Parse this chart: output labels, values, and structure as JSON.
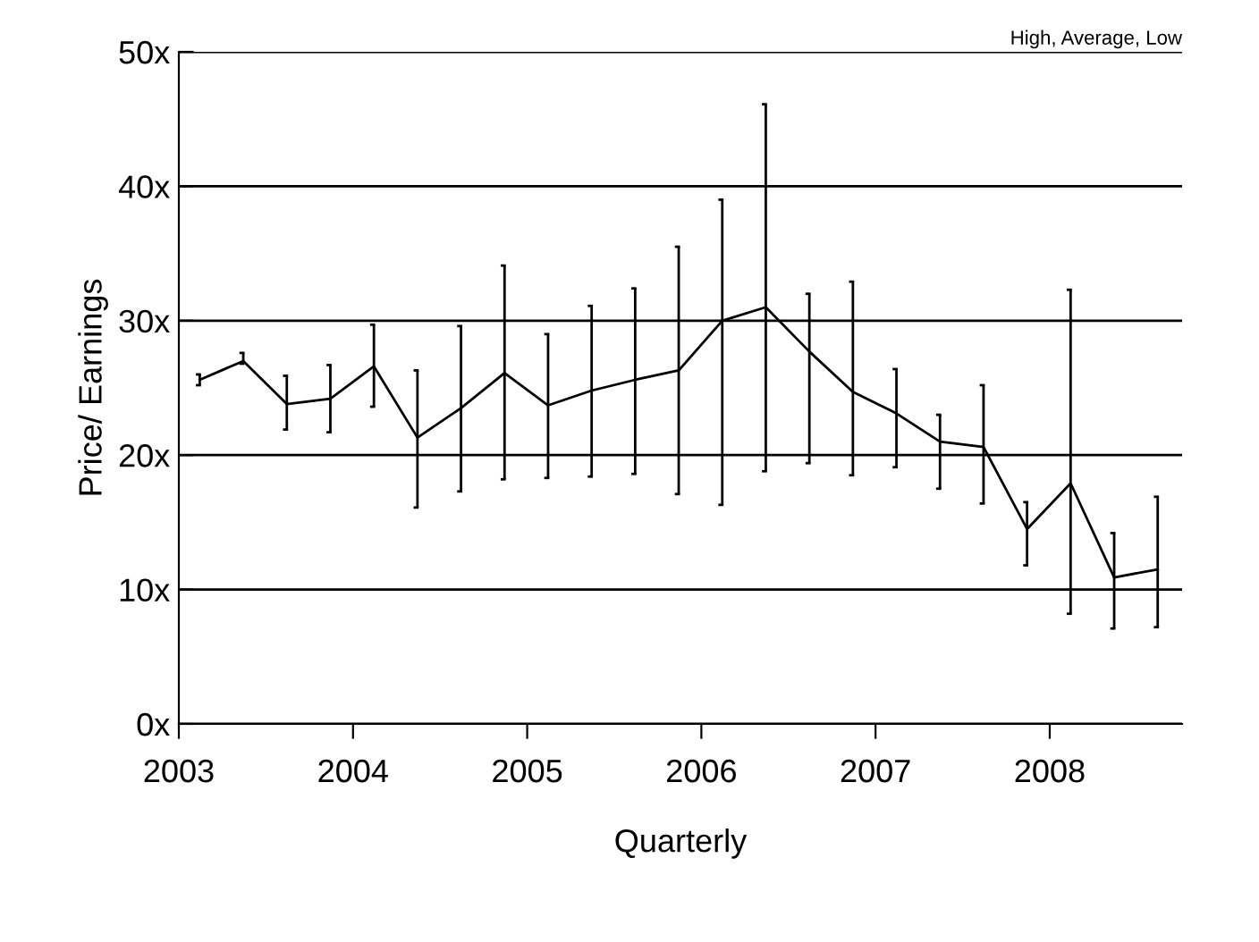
{
  "chart_data": {
    "type": "line",
    "title": "High, Average, Low",
    "xlabel": "Quarterly",
    "ylabel": "Price/ Earnings",
    "x": [
      2003.12,
      2003.37,
      2003.62,
      2003.87,
      2004.12,
      2004.37,
      2004.62,
      2004.87,
      2005.12,
      2005.37,
      2005.62,
      2005.87,
      2006.12,
      2006.37,
      2006.62,
      2006.87,
      2007.12,
      2007.37,
      2007.62,
      2007.87,
      2008.12,
      2008.37,
      2008.62
    ],
    "series": [
      {
        "color": "#000000",
        "values": [
          25.6,
          27.0,
          23.8,
          24.2,
          26.6,
          21.3,
          23.5,
          26.1,
          23.7,
          24.8,
          25.6,
          26.3,
          30.0,
          31.0,
          27.7,
          24.7,
          23.1,
          21.0,
          20.6,
          14.5,
          17.9,
          10.9,
          11.5
        ],
        "errors": [
          [
            25.2,
            26.0
          ],
          [
            26.8,
            27.6
          ],
          [
            21.9,
            25.9
          ],
          [
            21.7,
            26.7
          ],
          [
            23.6,
            29.7
          ],
          [
            16.1,
            26.3
          ],
          [
            17.3,
            29.6
          ],
          [
            18.2,
            34.1
          ],
          [
            18.3,
            29.0
          ],
          [
            18.4,
            31.1
          ],
          [
            18.6,
            32.4
          ],
          [
            17.1,
            35.5
          ],
          [
            16.3,
            39.0
          ],
          [
            18.8,
            46.1
          ],
          [
            19.4,
            32.0
          ],
          [
            18.5,
            32.9
          ],
          [
            19.1,
            26.4
          ],
          [
            17.5,
            23.0
          ],
          [
            16.4,
            25.2
          ],
          [
            11.8,
            16.5
          ],
          [
            8.2,
            32.3
          ],
          [
            7.1,
            14.2
          ],
          [
            7.2,
            16.9
          ]
        ]
      }
    ],
    "xlim": [
      2003,
      2008.76
    ],
    "xticks": [
      2003,
      2004,
      2005,
      2006,
      2007,
      2008
    ],
    "ylim": [
      0,
      50
    ],
    "yticks": [
      {
        "value": 0,
        "label": "0x"
      },
      {
        "value": 10,
        "label": "10x"
      },
      {
        "value": 20,
        "label": "20x"
      },
      {
        "value": 30,
        "label": "30x"
      },
      {
        "value": 40,
        "label": "40x"
      },
      {
        "value": 50,
        "label": "50x"
      }
    ],
    "grid": "y",
    "marker": "none",
    "line_style": "solid"
  }
}
